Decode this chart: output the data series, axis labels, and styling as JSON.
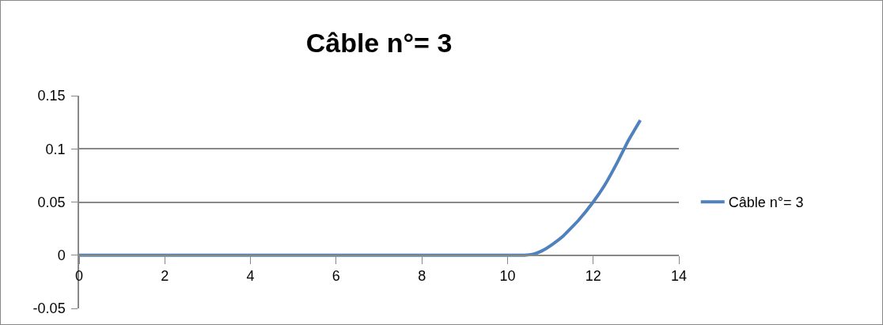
{
  "chart_data": {
    "type": "line",
    "title": "Câble n°= 3",
    "x": [
      0,
      2,
      4,
      6,
      8,
      10,
      10.4,
      10.6,
      10.8,
      11.04,
      11.3,
      11.65,
      12,
      12.27,
      12.58,
      12.83,
      13.1
    ],
    "series": [
      {
        "name": "Câble n°= 3",
        "color": "#4f81bd",
        "values": [
          0,
          0,
          0,
          0,
          0,
          0,
          0,
          0.001,
          0.004,
          0.01,
          0.018,
          0.0325,
          0.05,
          0.066,
          0.0886,
          0.1085,
          0.127
        ]
      }
    ],
    "xlim": [
      0,
      14
    ],
    "xticks": [
      0,
      2,
      4,
      6,
      8,
      10,
      12,
      14
    ],
    "ylim": [
      -0.05,
      0.15
    ],
    "yticks": [
      -0.05,
      0,
      0.05,
      0.1,
      0.15
    ],
    "grid": "y",
    "legend": "right",
    "marker": "none",
    "line_style": "solid"
  }
}
